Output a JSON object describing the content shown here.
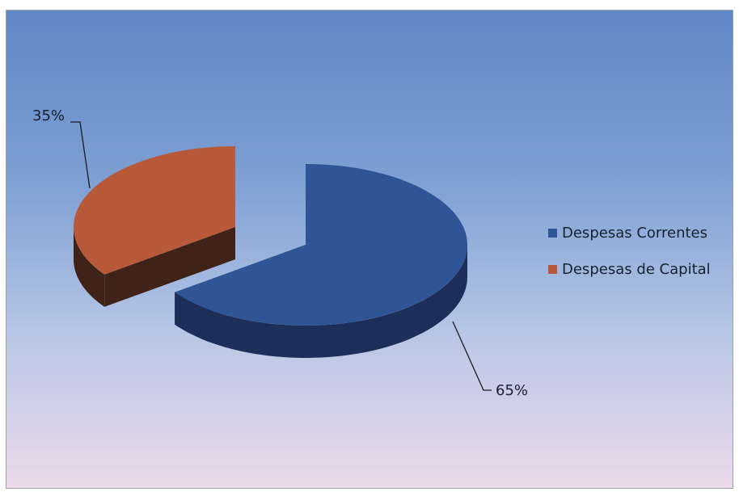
{
  "chart_data": {
    "type": "pie",
    "title": "",
    "slices": [
      {
        "name": "Despesas Correntes",
        "value": 65,
        "label": "65%"
      },
      {
        "name": "Despesas de Capital",
        "value": 35,
        "label": "35%"
      }
    ],
    "colors": {
      "Despesas Correntes": {
        "top": "#2f5597",
        "side": "#1d2f58"
      },
      "Despesas de Capital": {
        "top": "#b85a3a",
        "side": "#3f2318"
      }
    },
    "legend": {
      "position": "right",
      "items": [
        "Despesas Correntes",
        "Despesas de Capital"
      ]
    },
    "style": "3d-exploded"
  }
}
